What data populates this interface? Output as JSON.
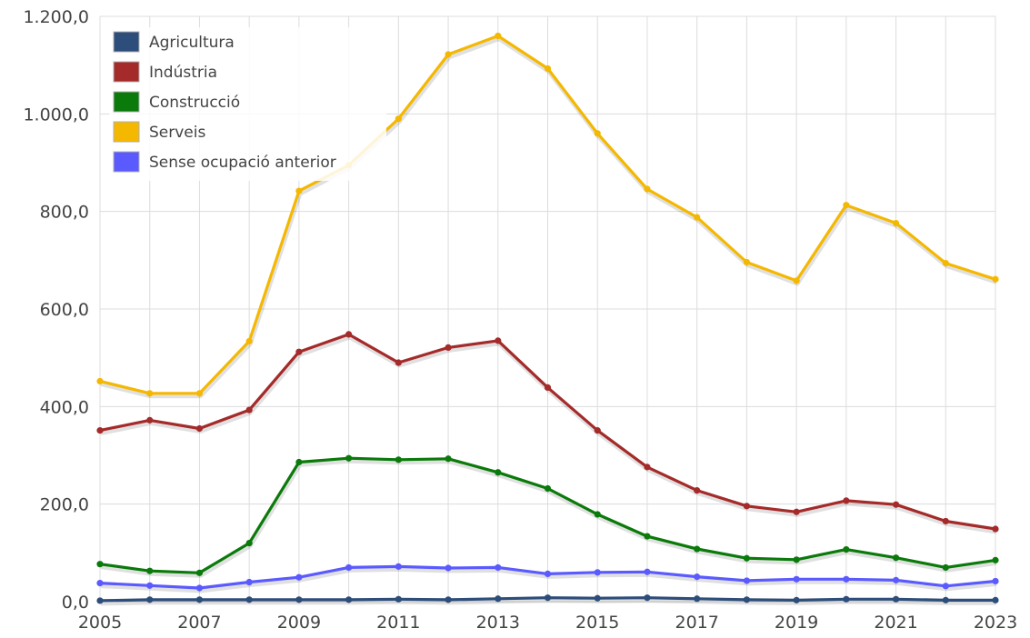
{
  "chart_data": {
    "type": "line",
    "x": [
      2005,
      2006,
      2007,
      2008,
      2009,
      2010,
      2011,
      2012,
      2013,
      2014,
      2015,
      2016,
      2017,
      2018,
      2019,
      2020,
      2021,
      2022,
      2023
    ],
    "x_tick_labels": [
      "2005",
      "2007",
      "2009",
      "2011",
      "2013",
      "2015",
      "2017",
      "2019",
      "2021",
      "2023"
    ],
    "y_tick_labels": [
      "0,0",
      "200,0",
      "400,0",
      "600,0",
      "800,0",
      "1.000,0",
      "1.200,0"
    ],
    "ylim": [
      0,
      1200
    ],
    "xlim": [
      2005,
      2023
    ],
    "grid": true,
    "legend_position": "top-left",
    "series": [
      {
        "name": "Agricultura",
        "color": "#2d4d7a",
        "values": [
          2,
          4,
          4,
          4,
          4,
          4,
          5,
          4,
          6,
          8,
          7,
          8,
          6,
          4,
          3,
          5,
          5,
          3,
          3
        ]
      },
      {
        "name": "Indústria",
        "color": "#a52a2a",
        "values": [
          351,
          372,
          355,
          393,
          512,
          548,
          490,
          521,
          535,
          439,
          351,
          276,
          228,
          196,
          184,
          207,
          199,
          165,
          149
        ]
      },
      {
        "name": "Construcció",
        "color": "#0a7a0a",
        "values": [
          77,
          63,
          59,
          120,
          286,
          294,
          291,
          293,
          265,
          232,
          179,
          134,
          108,
          89,
          86,
          107,
          90,
          70,
          85
        ]
      },
      {
        "name": "Serveis",
        "color": "#f5b800",
        "values": [
          452,
          427,
          427,
          534,
          842,
          895,
          990,
          1122,
          1160,
          1093,
          960,
          846,
          788,
          696,
          658,
          813,
          776,
          694,
          661
        ]
      },
      {
        "name": "Sense ocupació anterior",
        "color": "#5a5aff",
        "values": [
          38,
          33,
          28,
          40,
          50,
          70,
          72,
          69,
          70,
          57,
          60,
          61,
          51,
          43,
          46,
          46,
          44,
          32,
          42
        ]
      }
    ]
  }
}
